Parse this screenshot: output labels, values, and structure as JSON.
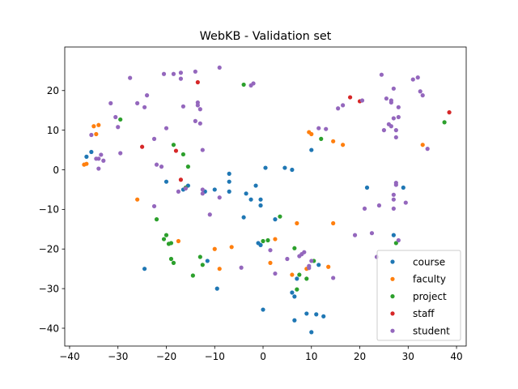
{
  "chart_data": {
    "type": "scatter",
    "title": "WebKB - Validation set",
    "xlabel": "",
    "ylabel": "",
    "xlim": [
      -41,
      42
    ],
    "ylim": [
      -44.5,
      31
    ],
    "xticks": [
      -40,
      -30,
      -20,
      -10,
      0,
      10,
      20,
      30,
      40
    ],
    "yticks": [
      -40,
      -30,
      -20,
      -10,
      0,
      10,
      20
    ],
    "grid": false,
    "legend_position": "lower-right",
    "series": [
      {
        "name": "course",
        "color": "#1f77b4",
        "points": [
          [
            -36.5,
            3.3
          ],
          [
            -35.5,
            4.5
          ],
          [
            -24.5,
            -25.0
          ],
          [
            -20.0,
            -3.0
          ],
          [
            -16.5,
            -5.0
          ],
          [
            -15.5,
            -4.0
          ],
          [
            -12.0,
            -5.5
          ],
          [
            -11.5,
            -23.0
          ],
          [
            -10.0,
            -5.0
          ],
          [
            -9.5,
            -30.0
          ],
          [
            -7.0,
            -1.0
          ],
          [
            -7.0,
            -3.0
          ],
          [
            -7.0,
            -5.5
          ],
          [
            -4.0,
            -12.0
          ],
          [
            -3.5,
            -6.0
          ],
          [
            -2.5,
            -7.5
          ],
          [
            -1.5,
            -4.0
          ],
          [
            -1.0,
            -18.5
          ],
          [
            -0.5,
            -19.0
          ],
          [
            -0.5,
            -7.5
          ],
          [
            -0.5,
            -9.0
          ],
          [
            0.0,
            -35.3
          ],
          [
            0.5,
            0.5
          ],
          [
            2.5,
            -12.5
          ],
          [
            4.5,
            0.5
          ],
          [
            6.0,
            0.0
          ],
          [
            6.0,
            -31.0
          ],
          [
            6.5,
            -38.0
          ],
          [
            6.5,
            -32.0
          ],
          [
            7.0,
            -27.5
          ],
          [
            9.0,
            -36.3
          ],
          [
            10.0,
            5.0
          ],
          [
            10.0,
            -41.0
          ],
          [
            11.0,
            -36.5
          ],
          [
            11.5,
            -24.0
          ],
          [
            12.5,
            -37.0
          ],
          [
            21.5,
            -4.5
          ],
          [
            27.0,
            -16.5
          ],
          [
            29.0,
            -4.5
          ]
        ]
      },
      {
        "name": "faculty",
        "color": "#ff7f0e",
        "points": [
          [
            -37.0,
            1.3
          ],
          [
            -36.5,
            1.5
          ],
          [
            -35.0,
            11.0
          ],
          [
            -34.5,
            9.0
          ],
          [
            -34.0,
            11.3
          ],
          [
            -26.0,
            -7.5
          ],
          [
            -17.5,
            -18.0
          ],
          [
            -10.0,
            -20.0
          ],
          [
            -9.0,
            -25.0
          ],
          [
            -6.5,
            -19.5
          ],
          [
            1.5,
            -23.5
          ],
          [
            2.5,
            -17.5
          ],
          [
            6.0,
            -26.5
          ],
          [
            7.0,
            -13.5
          ],
          [
            9.0,
            -25.0
          ],
          [
            9.5,
            9.5
          ],
          [
            10.0,
            9.0
          ],
          [
            13.5,
            -24.5
          ],
          [
            14.5,
            7.2
          ],
          [
            14.5,
            -13.5
          ],
          [
            16.5,
            6.3
          ],
          [
            33.0,
            6.3
          ]
        ]
      },
      {
        "name": "project",
        "color": "#2ca02c",
        "points": [
          [
            -29.5,
            12.7
          ],
          [
            -22.0,
            -12.5
          ],
          [
            -20.5,
            -17.5
          ],
          [
            -20.0,
            -16.5
          ],
          [
            -19.5,
            -18.7
          ],
          [
            -19.0,
            -18.5
          ],
          [
            -19.0,
            -22.5
          ],
          [
            -18.5,
            -23.5
          ],
          [
            -18.5,
            6.3
          ],
          [
            -16.5,
            3.9
          ],
          [
            -16.0,
            -4.5
          ],
          [
            -15.5,
            0.8
          ],
          [
            -14.5,
            -26.7
          ],
          [
            -13.0,
            -22.0
          ],
          [
            -12.5,
            -24.0
          ],
          [
            -4.0,
            21.5
          ],
          [
            0.0,
            -18.0
          ],
          [
            1.0,
            -17.8
          ],
          [
            3.5,
            -11.8
          ],
          [
            6.5,
            -19.8
          ],
          [
            7.0,
            -30.2
          ],
          [
            7.5,
            -26.5
          ],
          [
            9.0,
            -27.5
          ],
          [
            10.5,
            -23.0
          ],
          [
            12.0,
            7.8
          ],
          [
            27.5,
            -18.5
          ],
          [
            37.5,
            12.0
          ]
        ]
      },
      {
        "name": "staff",
        "color": "#d62728",
        "points": [
          [
            -25.0,
            5.8
          ],
          [
            -18.0,
            4.8
          ],
          [
            -17.0,
            -2.5
          ],
          [
            -13.5,
            22.1
          ],
          [
            18.0,
            18.3
          ],
          [
            20.0,
            17.3
          ],
          [
            38.5,
            14.5
          ]
        ]
      },
      {
        "name": "student",
        "color": "#9467bd",
        "points": [
          [
            -35.5,
            8.8
          ],
          [
            -34.0,
            2.8
          ],
          [
            -33.5,
            3.8
          ],
          [
            -33.0,
            2.3
          ],
          [
            -34.5,
            2.8
          ],
          [
            -34.0,
            0.3
          ],
          [
            -31.5,
            16.8
          ],
          [
            -30.5,
            13.3
          ],
          [
            -30.0,
            10.8
          ],
          [
            -29.5,
            4.2
          ],
          [
            -27.5,
            23.2
          ],
          [
            -26.0,
            16.8
          ],
          [
            -24.5,
            15.8
          ],
          [
            -24.0,
            18.8
          ],
          [
            -22.5,
            7.8
          ],
          [
            -22.5,
            -9.2
          ],
          [
            -22.0,
            1.3
          ],
          [
            -21.0,
            0.8
          ],
          [
            -20.5,
            24.2
          ],
          [
            -20.0,
            10.5
          ],
          [
            -18.5,
            24.2
          ],
          [
            -17.5,
            -5.5
          ],
          [
            -17.0,
            23.0
          ],
          [
            -17.0,
            24.5
          ],
          [
            -16.5,
            16.0
          ],
          [
            -16.0,
            -4.7
          ],
          [
            -14.0,
            12.3
          ],
          [
            -14.0,
            24.8
          ],
          [
            -13.5,
            17.0
          ],
          [
            -13.5,
            16.3
          ],
          [
            -13.0,
            15.3
          ],
          [
            -13.0,
            11.7
          ],
          [
            -12.5,
            5.0
          ],
          [
            -12.5,
            -5.0
          ],
          [
            -12.5,
            -6.0
          ],
          [
            -11.0,
            -11.3
          ],
          [
            -9.0,
            25.8
          ],
          [
            -9.0,
            -7.0
          ],
          [
            -4.5,
            -24.7
          ],
          [
            -2.5,
            21.3
          ],
          [
            -2.0,
            21.8
          ],
          [
            1.5,
            -20.3
          ],
          [
            2.5,
            -26.2
          ],
          [
            5.0,
            -22.5
          ],
          [
            7.5,
            -21.8
          ],
          [
            8.0,
            -21.3
          ],
          [
            8.5,
            -20.8
          ],
          [
            9.5,
            -24.3
          ],
          [
            9.5,
            -24.8
          ],
          [
            10.0,
            -23.0
          ],
          [
            11.5,
            10.5
          ],
          [
            13.0,
            10.3
          ],
          [
            14.5,
            -27.3
          ],
          [
            15.5,
            15.5
          ],
          [
            16.5,
            16.3
          ],
          [
            19.0,
            -16.5
          ],
          [
            20.5,
            17.5
          ],
          [
            21.0,
            -9.8
          ],
          [
            22.5,
            -16.0
          ],
          [
            23.5,
            -22.0
          ],
          [
            24.0,
            -9.0
          ],
          [
            24.5,
            24.0
          ],
          [
            25.0,
            10.0
          ],
          [
            25.5,
            18.0
          ],
          [
            26.0,
            11.5
          ],
          [
            26.5,
            17.5
          ],
          [
            26.5,
            17.0
          ],
          [
            26.5,
            11.0
          ],
          [
            27.0,
            13.0
          ],
          [
            27.0,
            20.5
          ],
          [
            27.0,
            -6.3
          ],
          [
            27.0,
            -7.5
          ],
          [
            27.0,
            -9.8
          ],
          [
            27.5,
            10.0
          ],
          [
            27.5,
            -3.3
          ],
          [
            27.5,
            -3.8
          ],
          [
            27.5,
            8.2
          ],
          [
            28.0,
            13.3
          ],
          [
            28.0,
            15.8
          ],
          [
            28.0,
            -17.8
          ],
          [
            29.5,
            -8.3
          ],
          [
            31.0,
            22.8
          ],
          [
            32.0,
            23.3
          ],
          [
            32.5,
            19.8
          ],
          [
            33.0,
            18.8
          ],
          [
            34.0,
            5.3
          ]
        ]
      }
    ]
  }
}
